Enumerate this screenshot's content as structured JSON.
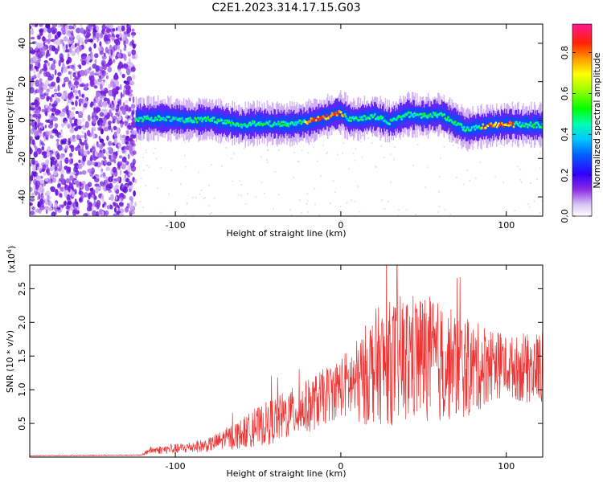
{
  "title": "C2E1.2023.314.17.15.G03",
  "chart_data": [
    {
      "type": "heatmap",
      "xlabel": "Height of straight line (km)",
      "ylabel": "Frequency (Hz)",
      "xlim": [
        -188,
        122
      ],
      "ylim": [
        -50,
        50
      ],
      "x_ticks": [
        -100,
        0,
        100
      ],
      "x_tick_labels": [
        "-100",
        "0",
        "100"
      ],
      "y_ticks": [
        -40,
        -20,
        0,
        20,
        40
      ],
      "y_tick_labels": [
        "-40",
        "-20",
        "0",
        "20",
        "40"
      ],
      "colorbar": {
        "label": "Normalized spectral amplitude",
        "range": [
          0,
          0.94
        ],
        "ticks": [
          0.0,
          0.2,
          0.4,
          0.6,
          0.8
        ],
        "tick_labels": [
          "0.0",
          "0.2",
          "0.4",
          "0.6",
          "0.8"
        ],
        "colormap": "rainbow-hsv"
      },
      "noise_region_end": -124,
      "ridge_center": [
        [
          -124,
          0.5
        ],
        [
          -110,
          1.0
        ],
        [
          -100,
          0.5
        ],
        [
          -90,
          0.0
        ],
        [
          -80,
          0.5
        ],
        [
          -70,
          -1.0
        ],
        [
          -60,
          -2.5
        ],
        [
          -50,
          -1.5
        ],
        [
          -40,
          -2.0
        ],
        [
          -30,
          -2.0
        ],
        [
          -20,
          -1.0
        ],
        [
          -10,
          1.5
        ],
        [
          0,
          4.0
        ],
        [
          5,
          0.5
        ],
        [
          10,
          0.5
        ],
        [
          20,
          2.0
        ],
        [
          30,
          -1.0
        ],
        [
          40,
          3.0
        ],
        [
          50,
          2.0
        ],
        [
          60,
          3.0
        ],
        [
          70,
          -2.0
        ],
        [
          76,
          -5.0
        ],
        [
          80,
          -4.0
        ],
        [
          90,
          -3.0
        ],
        [
          100,
          -2.0
        ],
        [
          110,
          -2.5
        ],
        [
          122,
          -2.5
        ]
      ]
    },
    {
      "type": "line",
      "xlabel": "Height of straight line (km)",
      "ylabel": "SNR (10 * v/v)",
      "y_scale_label": "(x10",
      "y_scale_exponent": "4",
      "y_scale_suffix": ")",
      "xlim": [
        -188,
        122
      ],
      "ylim": [
        0,
        2.85
      ],
      "x_ticks": [
        -100,
        0,
        100
      ],
      "x_tick_labels": [
        "-100",
        "0",
        "100"
      ],
      "y_ticks": [
        0.5,
        1.0,
        1.5,
        2.0,
        2.5
      ],
      "y_tick_labels": [
        "0.5",
        "1.0",
        "1.5",
        "2.0",
        "2.5"
      ],
      "color": "#ee3333",
      "envelope": [
        [
          -188,
          0.02
        ],
        [
          -120,
          0.03
        ],
        [
          -116,
          0.1
        ],
        [
          -100,
          0.12
        ],
        [
          -80,
          0.18
        ],
        [
          -60,
          0.35
        ],
        [
          -40,
          0.55
        ],
        [
          -20,
          0.75
        ],
        [
          0,
          1.05
        ],
        [
          10,
          1.1
        ],
        [
          20,
          1.35
        ],
        [
          30,
          1.4
        ],
        [
          40,
          1.45
        ],
        [
          50,
          1.5
        ],
        [
          60,
          1.4
        ],
        [
          70,
          1.35
        ],
        [
          80,
          1.3
        ],
        [
          90,
          1.4
        ],
        [
          100,
          1.35
        ],
        [
          110,
          1.3
        ],
        [
          122,
          1.35
        ]
      ],
      "noise_amplitude": [
        [
          -188,
          0.005
        ],
        [
          -120,
          0.008
        ],
        [
          -116,
          0.05
        ],
        [
          -80,
          0.1
        ],
        [
          -40,
          0.35
        ],
        [
          0,
          0.45
        ],
        [
          20,
          0.85
        ],
        [
          40,
          1.0
        ],
        [
          60,
          0.9
        ],
        [
          80,
          0.7
        ],
        [
          100,
          0.45
        ],
        [
          122,
          0.55
        ]
      ]
    }
  ]
}
